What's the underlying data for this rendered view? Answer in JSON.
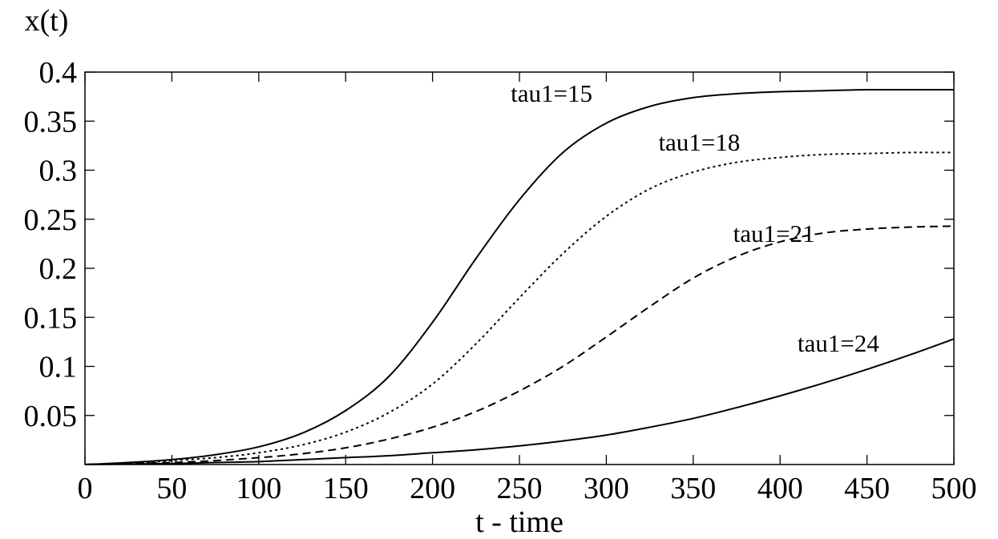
{
  "chart_data": {
    "type": "line",
    "title": "",
    "xlabel": "t - time",
    "ylabel": "x(t)",
    "xlim": [
      0,
      500
    ],
    "ylim": [
      0,
      0.4
    ],
    "xticks": [
      "0",
      "50",
      "100",
      "150",
      "200",
      "250",
      "300",
      "350",
      "400",
      "450",
      "500"
    ],
    "yticks": [
      "0.05",
      "0.1",
      "0.15",
      "0.2",
      "0.25",
      "0.3",
      "0.35",
      "0.4"
    ],
    "grid": false,
    "legend": "none",
    "series": [
      {
        "name": "tau1=15",
        "style": "solid",
        "label": "tau1=15",
        "label_at": [
          245,
          0.37
        ],
        "x": [
          0,
          25,
          50,
          75,
          100,
          125,
          150,
          175,
          200,
          225,
          250,
          275,
          300,
          325,
          350,
          375,
          400,
          425,
          450,
          475,
          500
        ],
        "y": [
          0.0,
          0.002,
          0.005,
          0.01,
          0.018,
          0.032,
          0.055,
          0.09,
          0.145,
          0.21,
          0.27,
          0.318,
          0.348,
          0.365,
          0.374,
          0.378,
          0.38,
          0.381,
          0.382,
          0.382,
          0.382
        ]
      },
      {
        "name": "tau1=18",
        "style": "dotted",
        "label": "tau1=18",
        "label_at": [
          330,
          0.32
        ],
        "x": [
          0,
          25,
          50,
          75,
          100,
          125,
          150,
          175,
          200,
          225,
          250,
          275,
          300,
          325,
          350,
          375,
          400,
          425,
          450,
          475,
          500
        ],
        "y": [
          0.0,
          0.001,
          0.004,
          0.007,
          0.012,
          0.02,
          0.033,
          0.053,
          0.082,
          0.123,
          0.17,
          0.215,
          0.253,
          0.281,
          0.298,
          0.308,
          0.313,
          0.316,
          0.317,
          0.318,
          0.318
        ]
      },
      {
        "name": "tau1=21",
        "style": "dashed",
        "label": "tau1=21",
        "label_at": [
          373,
          0.227
        ],
        "x": [
          0,
          25,
          50,
          75,
          100,
          125,
          150,
          175,
          200,
          225,
          250,
          275,
          300,
          325,
          350,
          375,
          400,
          425,
          450,
          475,
          500
        ],
        "y": [
          0.0,
          0.001,
          0.002,
          0.004,
          0.007,
          0.011,
          0.017,
          0.026,
          0.038,
          0.054,
          0.075,
          0.1,
          0.13,
          0.161,
          0.19,
          0.212,
          0.227,
          0.236,
          0.24,
          0.242,
          0.243
        ]
      },
      {
        "name": "tau1=24",
        "style": "solid",
        "label": "tau1=24",
        "label_at": [
          410,
          0.115
        ],
        "x": [
          0,
          25,
          50,
          75,
          100,
          125,
          150,
          175,
          200,
          225,
          250,
          275,
          300,
          325,
          350,
          375,
          400,
          425,
          450,
          475,
          500
        ],
        "y": [
          0.0,
          0.0005,
          0.001,
          0.002,
          0.003,
          0.005,
          0.007,
          0.009,
          0.012,
          0.015,
          0.019,
          0.024,
          0.03,
          0.038,
          0.047,
          0.058,
          0.07,
          0.083,
          0.097,
          0.112,
          0.128
        ]
      }
    ]
  }
}
